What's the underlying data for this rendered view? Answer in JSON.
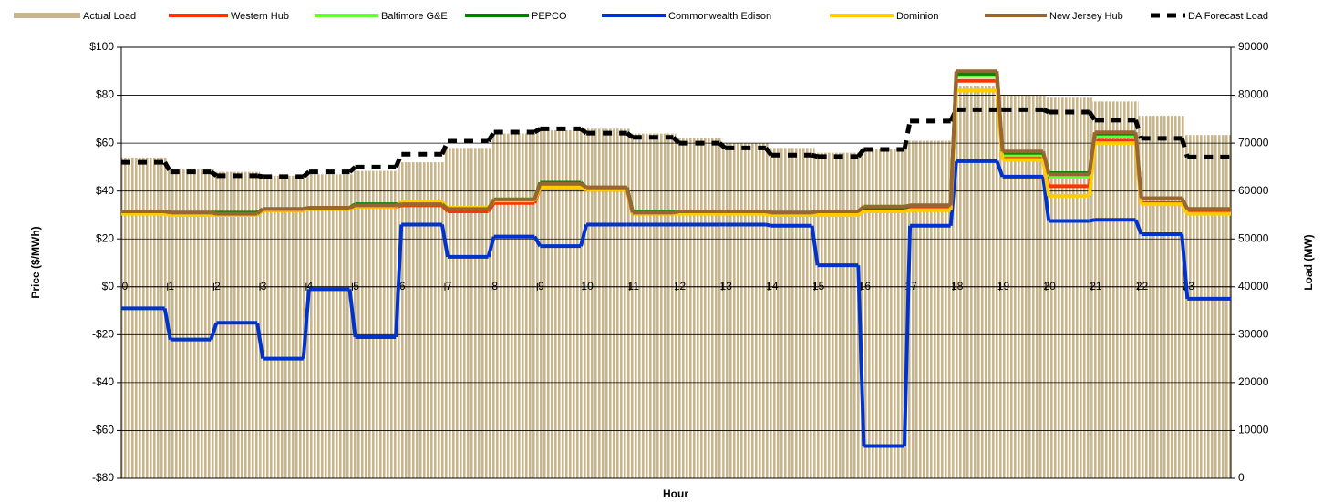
{
  "chart_data": {
    "type": "combo",
    "xlabel": "Hour",
    "ylabel": "Price ($/MWh)",
    "y2label": "Load (MW)",
    "xlim": [
      0,
      24
    ],
    "xticks": [
      0,
      1,
      2,
      3,
      4,
      5,
      6,
      7,
      8,
      9,
      10,
      11,
      12,
      13,
      14,
      15,
      16,
      17,
      18,
      19,
      20,
      21,
      22,
      23
    ],
    "ylim": [
      -80,
      100
    ],
    "yticks": [
      {
        "value": -80,
        "label": "-$80"
      },
      {
        "value": -60,
        "label": "-$60"
      },
      {
        "value": -40,
        "label": "-$40"
      },
      {
        "value": -20,
        "label": "-$20"
      },
      {
        "value": 0,
        "label": "$0"
      },
      {
        "value": 20,
        "label": "$20"
      },
      {
        "value": 40,
        "label": "$40"
      },
      {
        "value": 60,
        "label": "$60"
      },
      {
        "value": 80,
        "label": "$80"
      },
      {
        "value": 100,
        "label": "$100"
      }
    ],
    "y2lim": [
      0,
      90000
    ],
    "y2ticks": [
      0,
      10000,
      20000,
      30000,
      40000,
      50000,
      60000,
      70000,
      80000,
      90000
    ],
    "grid": true,
    "legend": "top",
    "series": [
      {
        "name": "Actual Load",
        "type": "bar",
        "axis": "y2",
        "color": "#c8b68a",
        "values": [
          67000,
          64500,
          64000,
          63200,
          63500,
          64200,
          66000,
          69000,
          72000,
          72700,
          73000,
          72000,
          71000,
          70000,
          69000,
          68000,
          68800,
          70500,
          82000,
          80000,
          79500,
          78700,
          75700,
          71700
        ]
      },
      {
        "name": "Western Hub",
        "type": "line",
        "color": "#ff3300",
        "values": [
          31,
          30.5,
          30,
          32,
          32.5,
          33.5,
          34,
          31.5,
          35,
          41.5,
          40.5,
          30.5,
          31,
          31,
          30.5,
          31,
          33,
          33.5,
          86,
          54,
          42,
          61,
          35,
          31.5
        ]
      },
      {
        "name": "Baltimore G&E",
        "type": "line",
        "color": "#66ff33",
        "values": [
          31.5,
          31,
          30.5,
          32.5,
          33,
          34,
          34.5,
          32.5,
          36.5,
          43,
          41.5,
          31,
          31.5,
          31.5,
          31,
          31.5,
          33.5,
          34,
          88,
          55,
          46,
          63,
          37,
          32.5
        ]
      },
      {
        "name": "PEPCO",
        "type": "line",
        "color": "#008000",
        "values": [
          31.5,
          31,
          31,
          32.5,
          33,
          34.5,
          34.5,
          32.5,
          36.5,
          43.5,
          41.5,
          31.5,
          31.5,
          31.5,
          31,
          31.5,
          33,
          34,
          89,
          56,
          47.5,
          64,
          37,
          32.5
        ]
      },
      {
        "name": "Commonwealth Edison",
        "type": "line",
        "color": "#0033cc",
        "values": [
          -9,
          -22,
          -15,
          -30,
          -1,
          -21,
          26,
          12.5,
          21,
          17,
          26,
          26,
          26,
          26,
          25.5,
          9,
          -66.5,
          25.5,
          52.5,
          46,
          27.5,
          28,
          22,
          -5
        ]
      },
      {
        "name": "Dominion",
        "type": "line",
        "color": "#ffcc00",
        "values": [
          30.5,
          30,
          30,
          32,
          32.5,
          33.5,
          35.5,
          33,
          36,
          41.5,
          40.5,
          30.5,
          30.5,
          30.5,
          30,
          30,
          31.5,
          32,
          82,
          53,
          38,
          60,
          34.5,
          30.5
        ]
      },
      {
        "name": "New Jersey Hub",
        "type": "line",
        "color": "#996633",
        "values": [
          31.5,
          31,
          30.5,
          32.5,
          33,
          34,
          34.5,
          32.5,
          36.5,
          43,
          41.5,
          31,
          31.5,
          31.5,
          31,
          31.5,
          33.5,
          34,
          90,
          56.5,
          47,
          64.5,
          37,
          32.5
        ]
      },
      {
        "name": "DA Forecast Load",
        "type": "line",
        "axis": "y2",
        "dash": true,
        "color": "#000000",
        "values": [
          66000,
          64000,
          63200,
          63000,
          64000,
          65000,
          67700,
          70400,
          72300,
          73000,
          72100,
          71200,
          70000,
          69000,
          67500,
          67200,
          68700,
          74600,
          77000,
          77000,
          76500,
          74800,
          71000,
          67100
        ]
      }
    ]
  }
}
